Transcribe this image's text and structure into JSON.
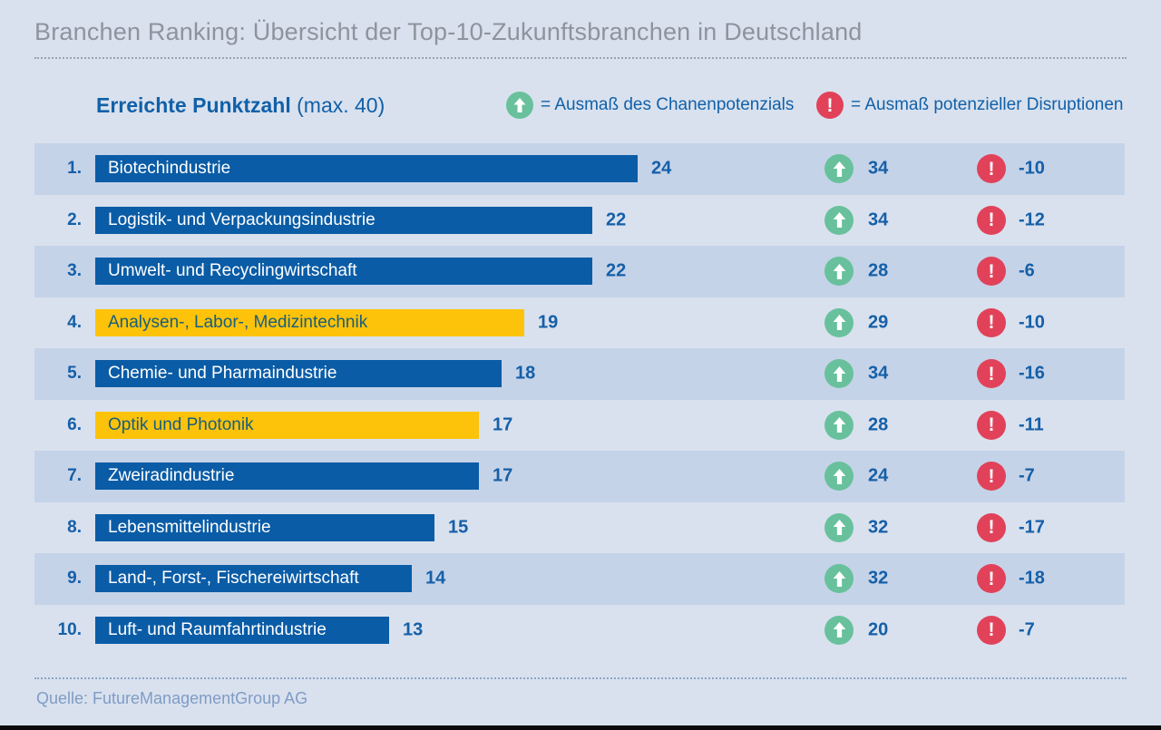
{
  "title": "Branchen Ranking: Übersicht der Top-10-Zukunftsbranchen in Deutschland",
  "header": {
    "score_label": "Erreichte Punktzahl",
    "score_max_label": "(max. 40)",
    "legend_chance_label": "= Ausmaß des Chanenpotenzials",
    "legend_disruption_label": "= Ausmaß potenzieller Disruptionen"
  },
  "icons": {
    "chance": "up-arrow-circle-icon",
    "disruption": "exclamation-circle-icon",
    "exclamation_glyph": "!"
  },
  "colors": {
    "background": "#d9e1ee",
    "row_band": "#c5d3e8",
    "bar_blue": "#0a5ca6",
    "bar_yellow": "#fdc30a",
    "text_blue": "#155fa8",
    "yellow_bar_text": "#185e7d",
    "chance_green": "#68c19c",
    "disruption_red": "#e1425a",
    "title_gray": "#8e949d",
    "source_blue": "#7f9cc6"
  },
  "chart_data": {
    "type": "bar",
    "orientation": "horizontal",
    "title": "Erreichte Punktzahl (max. 40)",
    "max_score": 40,
    "legend": [
      "= Ausmaß des Chanenpotenzials",
      "= Ausmaß potenzieller Disruptionen"
    ],
    "rows": [
      {
        "rank": "1.",
        "label": "Biotechindustrie",
        "score": 24,
        "chance": 34,
        "disruption": -10,
        "bar_color": "blue",
        "banded": true
      },
      {
        "rank": "2.",
        "label": "Logistik- und Verpackungsindustrie",
        "score": 22,
        "chance": 34,
        "disruption": -12,
        "bar_color": "blue",
        "banded": false
      },
      {
        "rank": "3.",
        "label": "Umwelt- und Recyclingwirtschaft",
        "score": 22,
        "chance": 28,
        "disruption": -6,
        "bar_color": "blue",
        "banded": true
      },
      {
        "rank": "4.",
        "label": "Analysen-, Labor-, Medizintechnik",
        "score": 19,
        "chance": 29,
        "disruption": -10,
        "bar_color": "yellow",
        "banded": false
      },
      {
        "rank": "5.",
        "label": "Chemie- und Pharmaindustrie",
        "score": 18,
        "chance": 34,
        "disruption": -16,
        "bar_color": "blue",
        "banded": true
      },
      {
        "rank": "6.",
        "label": "Optik und Photonik",
        "score": 17,
        "chance": 28,
        "disruption": -11,
        "bar_color": "yellow",
        "banded": false
      },
      {
        "rank": "7.",
        "label": "Zweiradindustrie",
        "score": 17,
        "chance": 24,
        "disruption": -7,
        "bar_color": "blue",
        "banded": true
      },
      {
        "rank": "8.",
        "label": "Lebensmittelindustrie",
        "score": 15,
        "chance": 32,
        "disruption": -17,
        "bar_color": "blue",
        "banded": false
      },
      {
        "rank": "9.",
        "label": "Land-, Forst-, Fischereiwirtschaft",
        "score": 14,
        "chance": 32,
        "disruption": -18,
        "bar_color": "blue",
        "banded": true
      },
      {
        "rank": "10.",
        "label": "Luft- und Raumfahrtindustrie",
        "score": 13,
        "chance": 20,
        "disruption": -7,
        "bar_color": "blue",
        "banded": false
      }
    ]
  },
  "source": "Quelle: FutureManagementGroup AG"
}
